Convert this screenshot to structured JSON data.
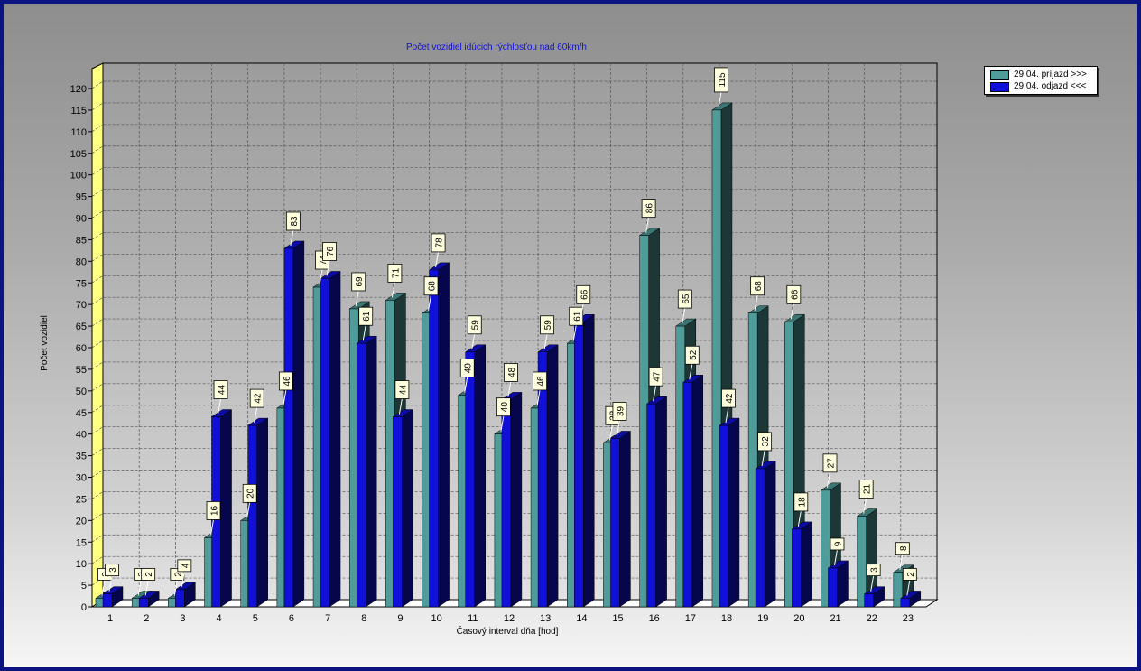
{
  "chart_data": {
    "type": "bar",
    "title": "Počet vozidiel idúcich rýchlosťou nad 60km/h",
    "xlabel": "Časový interval dňa [hod]",
    "ylabel": "Počet vozidiel",
    "ylim": [
      0,
      120
    ],
    "yticks": [
      0,
      5,
      10,
      15,
      20,
      25,
      30,
      35,
      40,
      45,
      50,
      55,
      60,
      65,
      70,
      75,
      80,
      85,
      90,
      95,
      100,
      105,
      110,
      115,
      120
    ],
    "categories": [
      "1",
      "2",
      "3",
      "4",
      "5",
      "6",
      "7",
      "8",
      "9",
      "10",
      "11",
      "12",
      "13",
      "14",
      "15",
      "16",
      "17",
      "18",
      "19",
      "20",
      "21",
      "22",
      "23"
    ],
    "series": [
      {
        "name": "29.04.  príjazd >>>",
        "color": "#4f9c9a",
        "values": [
          2,
          2,
          2,
          16,
          20,
          46,
          74,
          69,
          71,
          68,
          49,
          40,
          46,
          61,
          38,
          86,
          65,
          115,
          68,
          66,
          27,
          21,
          8
        ]
      },
      {
        "name": "29.04.  odjazd <<<",
        "color": "#1010d8",
        "values": [
          3,
          2,
          4,
          44,
          42,
          83,
          76,
          61,
          44,
          78,
          59,
          48,
          59,
          66,
          39,
          47,
          52,
          42,
          32,
          18,
          9,
          3,
          2
        ]
      }
    ],
    "grid": true,
    "legend_position": "top-right"
  }
}
